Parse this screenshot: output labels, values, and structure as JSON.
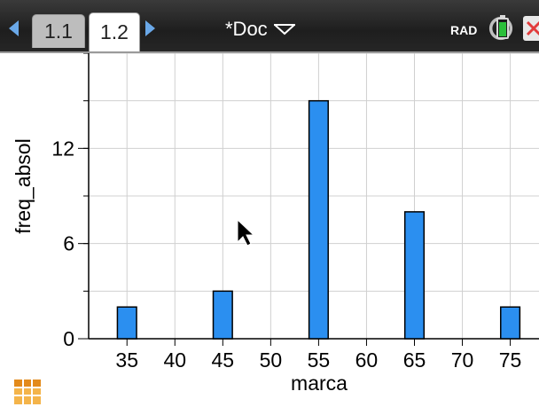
{
  "tabs": [
    {
      "label": "1.1",
      "active": false
    },
    {
      "label": "1.2",
      "active": true
    }
  ],
  "document": {
    "title": "*Doc"
  },
  "status": {
    "angle_mode": "RAD",
    "battery_icon": "battery-icon",
    "close_icon": "close-icon"
  },
  "colors": {
    "bar_fill": "#2b8ff0",
    "bar_stroke": "#000000",
    "grid": "#d0d0d0",
    "accent": "#6aa8e8"
  },
  "chart_data": {
    "type": "bar",
    "xlabel": "marca",
    "ylabel": "freq_absol",
    "x": [
      35,
      45,
      55,
      65,
      75
    ],
    "values": [
      2,
      3,
      15,
      8,
      2
    ],
    "xlim": [
      31,
      78
    ],
    "ylim": [
      0,
      18
    ],
    "x_ticks": [
      "35",
      "40",
      "45",
      "50",
      "55",
      "60",
      "65",
      "70",
      "75"
    ],
    "y_ticks": [
      "0",
      "6",
      "12"
    ],
    "grid": true
  }
}
